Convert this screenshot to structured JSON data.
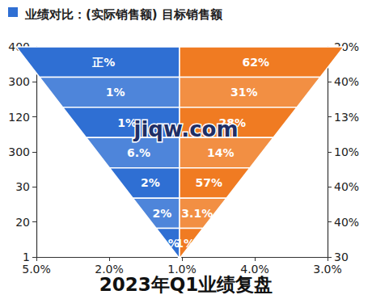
{
  "chart_data": {
    "type": "funnel",
    "title": "业绩对比：(实际销售额) 目标销售额",
    "subtitle": "2023年Q1业绩复盘",
    "annotations": [
      "jiqw.com"
    ],
    "data_labels": true,
    "y_tick_labels": [
      "400",
      "300",
      "120",
      "300",
      "30",
      "20",
      "1"
    ],
    "y2_tick_labels": [
      "20%",
      "40%",
      "13%",
      "10%",
      "40%",
      "40%",
      "30"
    ],
    "x_tick_labels": [
      "5.0%",
      "2.0%",
      "1.0%",
      "4.0%",
      "3.0%"
    ],
    "series": [
      {
        "name": "实际销售额",
        "color": "#2f6fd3",
        "labels": [
          "正%",
          "1%",
          "1%",
          "6.%",
          "2%",
          "2%",
          "%"
        ]
      },
      {
        "name": "目标销售额",
        "color": "#f07b22",
        "labels": [
          "62%",
          "31%",
          "28%",
          "14%",
          "57%",
          "3.1%",
          "1%"
        ]
      }
    ]
  }
}
